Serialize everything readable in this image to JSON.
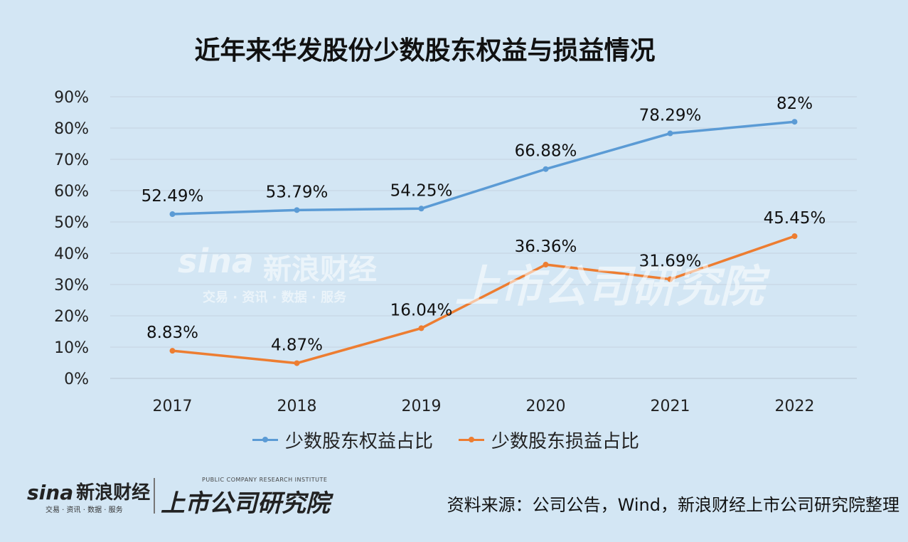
{
  "chart_data": {
    "type": "line",
    "title": "近年来华发股份少数股东权益与损益情况",
    "categories": [
      "2017",
      "2018",
      "2019",
      "2020",
      "2021",
      "2022"
    ],
    "series": [
      {
        "name": "少数股东权益占比",
        "color": "#5b9bd5",
        "values": [
          52.49,
          53.79,
          54.25,
          66.88,
          78.29,
          82
        ],
        "labels": [
          "52.49%",
          "53.79%",
          "54.25%",
          "66.88%",
          "78.29%",
          "82%"
        ]
      },
      {
        "name": "少数股东损益占比",
        "color": "#ed7d31",
        "values": [
          8.83,
          4.87,
          16.04,
          36.36,
          31.69,
          45.45
        ],
        "labels": [
          "8.83%",
          "4.87%",
          "16.04%",
          "36.36%",
          "31.69%",
          "45.45%"
        ]
      }
    ],
    "yticks": [
      "0%",
      "10%",
      "20%",
      "30%",
      "40%",
      "50%",
      "60%",
      "70%",
      "80%",
      "90%"
    ],
    "ylim": [
      0,
      90
    ],
    "grid": true,
    "legend": "bottom"
  },
  "watermark": {
    "brand": "sina",
    "brand_cn": "新浪财经",
    "brand_sub": "交易 · 资讯 · 数据 · 服务",
    "institute": "上市公司研究院"
  },
  "footer": {
    "logo_word": "sina",
    "logo_cn": "新浪财经",
    "logo_sub": "交易 · 资讯 · 数据 · 服务",
    "institute_en": "PUBLIC COMPANY RESEARCH INSTITUTE",
    "institute_cn": "上市公司研究院",
    "source": "资料来源：公司公告，Wind，新浪财经上市公司研究院整理"
  }
}
